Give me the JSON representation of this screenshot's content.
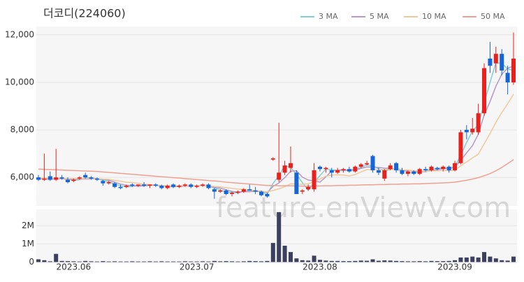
{
  "chart_data": {
    "type": "candlestick",
    "title": "더코디(224060)",
    "watermark": "feature.enViewV.com",
    "categories": [
      null,
      null,
      null,
      null,
      null,
      null,
      "2023.06",
      null,
      null,
      null,
      null,
      null,
      null,
      null,
      null,
      null,
      null,
      null,
      null,
      null,
      null,
      null,
      null,
      null,
      null,
      null,
      null,
      "2023.07",
      null,
      null,
      null,
      null,
      null,
      null,
      null,
      null,
      null,
      null,
      null,
      null,
      null,
      null,
      null,
      null,
      null,
      null,
      null,
      null,
      "2023.08",
      null,
      null,
      null,
      null,
      null,
      null,
      null,
      null,
      null,
      null,
      null,
      null,
      null,
      null,
      null,
      null,
      null,
      null,
      null,
      null,
      null,
      null,
      "2023.09",
      null,
      null,
      null,
      null,
      null,
      null,
      null,
      null,
      null,
      null
    ],
    "open": [
      6000,
      5900,
      6050,
      5900,
      6000,
      5900,
      5850,
      5950,
      6100,
      6000,
      5950,
      5850,
      5750,
      5750,
      5600,
      5600,
      5700,
      5650,
      5700,
      5650,
      5700,
      5650,
      5550,
      5700,
      5600,
      5650,
      5700,
      5600,
      5650,
      5700,
      5500,
      5400,
      5450,
      5300,
      5350,
      5400,
      5500,
      5450,
      5400,
      5300,
      6750,
      5900,
      6200,
      6400,
      6200,
      5400,
      5500,
      5500,
      6450,
      6350,
      6300,
      6200,
      6300,
      6350,
      6250,
      6450,
      6550,
      6900,
      6300,
      5950,
      6350,
      6600,
      6300,
      6150,
      6250,
      6150,
      6350,
      6300,
      6400,
      6350,
      6450,
      6300,
      6600,
      8000,
      7900,
      7900,
      8700,
      11000,
      10800,
      11200,
      10400,
      10000
    ],
    "high": [
      6100,
      7000,
      6250,
      7200,
      6100,
      6000,
      5950,
      6050,
      6200,
      6050,
      6000,
      5900,
      5850,
      5800,
      5700,
      5700,
      5750,
      5700,
      5800,
      5700,
      5750,
      5700,
      5700,
      5750,
      5700,
      5750,
      5750,
      5700,
      5750,
      5750,
      5550,
      5500,
      5500,
      5400,
      5450,
      5550,
      5700,
      5600,
      5450,
      5350,
      6850,
      8300,
      6700,
      7300,
      6300,
      5500,
      5700,
      6600,
      6500,
      6450,
      6400,
      6400,
      6400,
      6450,
      6500,
      6600,
      6700,
      6950,
      6400,
      6350,
      6600,
      6650,
      6400,
      6300,
      6300,
      6400,
      6450,
      6500,
      6450,
      6500,
      6500,
      6700,
      8000,
      8200,
      8500,
      9100,
      10800,
      11700,
      11500,
      11400,
      10700,
      12100
    ],
    "low": [
      5850,
      5850,
      5850,
      5850,
      5900,
      5750,
      5800,
      5900,
      5950,
      5900,
      5850,
      5650,
      5700,
      5550,
      5500,
      5550,
      5600,
      5600,
      5600,
      5550,
      5600,
      5500,
      5500,
      5550,
      5550,
      5600,
      5550,
      5550,
      5600,
      5500,
      5100,
      5350,
      5250,
      5200,
      5300,
      5350,
      5450,
      5300,
      5200,
      5150,
      6700,
      5800,
      6100,
      6200,
      5300,
      5300,
      5450,
      5400,
      6250,
      6200,
      6000,
      6150,
      6200,
      6200,
      6200,
      6400,
      6500,
      6200,
      6100,
      5850,
      6300,
      6200,
      6100,
      6050,
      6100,
      6100,
      6250,
      6250,
      6300,
      6250,
      6200,
      6250,
      6550,
      7600,
      7800,
      7800,
      8600,
      10400,
      10400,
      10300,
      9500,
      9900
    ],
    "close": [
      5900,
      5950,
      5900,
      6000,
      5950,
      5800,
      5900,
      6000,
      6000,
      5950,
      5900,
      5750,
      5800,
      5600,
      5550,
      5650,
      5650,
      5700,
      5650,
      5700,
      5650,
      5550,
      5650,
      5600,
      5650,
      5700,
      5600,
      5650,
      5700,
      5550,
      5400,
      5450,
      5300,
      5350,
      5400,
      5500,
      5450,
      5400,
      5250,
      5200,
      6800,
      6200,
      6500,
      6600,
      5300,
      5450,
      5600,
      6300,
      6350,
      6400,
      6200,
      6300,
      6350,
      6250,
      6450,
      6550,
      6600,
      6300,
      6200,
      6300,
      6500,
      6300,
      6150,
      6250,
      6150,
      6350,
      6300,
      6450,
      6350,
      6450,
      6300,
      6600,
      7900,
      7900,
      8050,
      8700,
      10600,
      10700,
      11200,
      10500,
      10000,
      11000
    ],
    "up_color": "#e8211f",
    "down_color": "#1565d8",
    "volume": [
      150000,
      100000,
      40000,
      450000,
      60000,
      50000,
      40000,
      30000,
      60000,
      40000,
      30000,
      50000,
      30000,
      40000,
      30000,
      30000,
      40000,
      30000,
      30000,
      40000,
      30000,
      40000,
      30000,
      30000,
      30000,
      40000,
      30000,
      30000,
      40000,
      30000,
      60000,
      40000,
      50000,
      40000,
      30000,
      40000,
      60000,
      50000,
      40000,
      60000,
      1050000,
      2750000,
      900000,
      550000,
      200000,
      100000,
      80000,
      350000,
      120000,
      80000,
      60000,
      60000,
      50000,
      50000,
      60000,
      80000,
      70000,
      150000,
      70000,
      90000,
      80000,
      60000,
      50000,
      40000,
      40000,
      50000,
      40000,
      60000,
      50000,
      50000,
      60000,
      100000,
      250000,
      250000,
      300000,
      250000,
      550000,
      300000,
      200000,
      100000,
      80000,
      300000
    ],
    "volume_color": "#3d3f5e",
    "series": [
      {
        "name": "3 MA",
        "color": "#7fd1d6",
        "values": [
          5950,
          5930,
          5920,
          5950,
          5950,
          5920,
          5880,
          5900,
          5970,
          5980,
          5950,
          5870,
          5820,
          5720,
          5650,
          5600,
          5620,
          5670,
          5670,
          5680,
          5670,
          5630,
          5620,
          5600,
          5630,
          5650,
          5650,
          5650,
          5650,
          5630,
          5550,
          5470,
          5380,
          5370,
          5350,
          5420,
          5450,
          5450,
          5370,
          5280,
          5750,
          6070,
          6500,
          6430,
          6130,
          5780,
          5450,
          5780,
          6080,
          6350,
          6320,
          6300,
          6280,
          6300,
          6350,
          6420,
          6530,
          6480,
          6370,
          6270,
          6330,
          6370,
          6320,
          6230,
          6180,
          6250,
          6270,
          6370,
          6370,
          6420,
          6370,
          6450,
          6930,
          7470,
          7950,
          8220,
          9120,
          10000,
          10830,
          10800,
          10570,
          10500
        ]
      },
      {
        "name": "5 MA",
        "color": "#b49ac5",
        "values": [
          5950,
          5940,
          5930,
          5940,
          5940,
          5920,
          5910,
          5930,
          5930,
          5930,
          5950,
          5920,
          5880,
          5800,
          5720,
          5670,
          5650,
          5630,
          5640,
          5670,
          5670,
          5650,
          5640,
          5630,
          5620,
          5630,
          5640,
          5640,
          5660,
          5640,
          5580,
          5550,
          5480,
          5410,
          5380,
          5400,
          5400,
          5420,
          5400,
          5360,
          5620,
          5770,
          5990,
          6260,
          6280,
          6010,
          5890,
          5850,
          5800,
          6020,
          6270,
          6310,
          6320,
          6300,
          6310,
          6380,
          6440,
          6430,
          6420,
          6390,
          6380,
          6320,
          6290,
          6300,
          6270,
          6240,
          6240,
          6300,
          6320,
          6380,
          6370,
          6430,
          6720,
          7030,
          7340,
          7820,
          8630,
          9190,
          9840,
          10340,
          10600,
          10680
        ]
      },
      {
        "name": "10 MA",
        "color": "#f0c99a",
        "values": [
          5980,
          5970,
          5960,
          5960,
          5950,
          5950,
          5950,
          5950,
          5950,
          5950,
          5950,
          5930,
          5920,
          5880,
          5840,
          5800,
          5780,
          5750,
          5720,
          5700,
          5680,
          5660,
          5650,
          5650,
          5650,
          5650,
          5650,
          5640,
          5650,
          5640,
          5620,
          5600,
          5570,
          5540,
          5510,
          5490,
          5470,
          5450,
          5420,
          5390,
          5450,
          5520,
          5610,
          5730,
          5720,
          5710,
          5730,
          5820,
          5930,
          6050,
          6100,
          6110,
          6100,
          6060,
          6120,
          6230,
          6330,
          6330,
          6330,
          6330,
          6340,
          6330,
          6310,
          6310,
          6280,
          6260,
          6260,
          6270,
          6280,
          6300,
          6280,
          6310,
          6490,
          6650,
          6820,
          6980,
          7410,
          7850,
          8320,
          8730,
          9100,
          9500
        ]
      },
      {
        "name": "50 MA",
        "color": "#f0a090",
        "values": [
          6350,
          6340,
          6330,
          6320,
          6310,
          6300,
          6290,
          6280,
          6270,
          6260,
          6250,
          6230,
          6210,
          6190,
          6170,
          6150,
          6130,
          6110,
          6090,
          6070,
          6050,
          6030,
          6010,
          5990,
          5970,
          5950,
          5930,
          5910,
          5890,
          5870,
          5850,
          5830,
          5800,
          5780,
          5760,
          5740,
          5720,
          5700,
          5680,
          5660,
          5660,
          5650,
          5650,
          5650,
          5640,
          5630,
          5630,
          5640,
          5640,
          5650,
          5650,
          5660,
          5660,
          5670,
          5670,
          5680,
          5690,
          5690,
          5700,
          5700,
          5710,
          5710,
          5720,
          5720,
          5730,
          5730,
          5740,
          5750,
          5760,
          5770,
          5780,
          5800,
          5840,
          5880,
          5930,
          5990,
          6070,
          6160,
          6280,
          6420,
          6580,
          6750
        ]
      }
    ],
    "ylim": [
      4800,
      12350
    ],
    "yticks": [
      {
        "value": 6000,
        "label": "6,000"
      },
      {
        "value": 8000,
        "label": "8,000"
      },
      {
        "value": 10000,
        "label": "10,000"
      },
      {
        "value": 12000,
        "label": "12,000"
      }
    ],
    "volume_lim": [
      -100000,
      2900000
    ],
    "volume_ticks": [
      0,
      {
        "value": 1000000,
        "label": "1M"
      },
      {
        "value": 2000000,
        "label": "2M"
      }
    ],
    "grid": true
  }
}
